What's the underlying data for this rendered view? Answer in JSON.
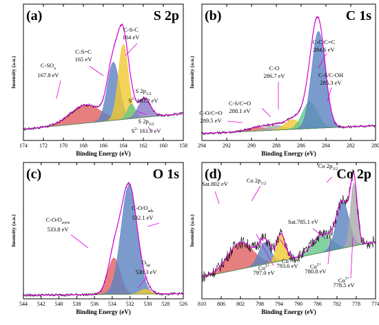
{
  "colors": {
    "red": "#e06060",
    "blue": "#5b82c0",
    "yellow": "#f0c830",
    "green": "#64c88a",
    "purple": "#8a78c8",
    "gray": "#aaaaaa",
    "envelope": "#e000e0",
    "data": "#000000"
  },
  "chart_data": [
    {
      "type": "area",
      "label": "(a)",
      "title": "S 2p",
      "xlabel": "Binding Energy (eV)",
      "ylabel": "Insensity (a.u.)",
      "xlim": [
        174,
        158
      ],
      "xticks": [
        "174",
        "172",
        "170",
        "168",
        "166",
        "164",
        "162",
        "160",
        "158"
      ],
      "baseline": 0.2,
      "components": [
        {
          "center": 167.8,
          "height": 0.15,
          "width": 1.5,
          "color": "red"
        },
        {
          "center": 165.0,
          "height": 0.48,
          "width": 0.6,
          "color": "blue"
        },
        {
          "center": 164.0,
          "height": 0.62,
          "width": 0.5,
          "color": "yellow"
        },
        {
          "center": 163.2,
          "height": 0.12,
          "width": 0.4,
          "color": "green"
        },
        {
          "center": 161.9,
          "height": 0.16,
          "width": 0.6,
          "color": "purple"
        }
      ],
      "annotations": [
        {
          "lines": [
            "C-SO<sub>x</sub>",
            "167.8 eV"
          ]
        },
        {
          "lines": [
            "C-S=C",
            "165 eV"
          ]
        },
        {
          "lines": [
            "C-S-C",
            "164 eV"
          ]
        },
        {
          "lines": [
            "S 2p<sub>1/2</sub>",
            "S<sup>2-</sup> 163.2 eV"
          ]
        },
        {
          "lines": [
            "S 2p<sub>3/2</sub>",
            "S<sup>2-</sup> 161.9 eV"
          ]
        }
      ]
    },
    {
      "type": "area",
      "label": "(b)",
      "title": "C 1s",
      "xlabel": "Binding Energy (eV)",
      "ylabel": "Insensity (a.u.)",
      "xlim": [
        294,
        280
      ],
      "xticks": [
        "294",
        "292",
        "290",
        "288",
        "286",
        "284",
        "282",
        "280"
      ],
      "baseline": 0.1,
      "components": [
        {
          "center": 289.5,
          "height": 0.03,
          "width": 0.8,
          "color": "red"
        },
        {
          "center": 288.1,
          "height": 0.04,
          "width": 0.7,
          "color": "gray"
        },
        {
          "center": 286.7,
          "height": 0.08,
          "width": 0.6,
          "color": "yellow"
        },
        {
          "center": 285.3,
          "height": 0.22,
          "width": 0.6,
          "color": "green"
        },
        {
          "center": 284.6,
          "height": 0.8,
          "width": 0.55,
          "color": "blue"
        }
      ],
      "annotations": [
        {
          "lines": [
            "C-O/C=O",
            "289.5 eV"
          ]
        },
        {
          "lines": [
            "C-S/C=O",
            "288.1 eV"
          ]
        },
        {
          "lines": [
            "C-O",
            "286.7 eV"
          ]
        },
        {
          "lines": [
            "C-C/C=C",
            "284.6 eV"
          ]
        },
        {
          "lines": [
            "C-S/C-OH",
            "285.3 eV"
          ]
        }
      ]
    },
    {
      "type": "area",
      "label": "(c)",
      "title": "O 1s",
      "xlabel": "Binding Energy (eV)",
      "ylabel": "Insensity (a.u.)",
      "xlim": [
        544,
        526
      ],
      "xticks": [
        "544",
        "542",
        "540",
        "538",
        "536",
        "534",
        "532",
        "530",
        "528",
        "526"
      ],
      "baseline": 0.02,
      "components": [
        {
          "center": 533.8,
          "height": 0.3,
          "width": 0.7,
          "color": "red"
        },
        {
          "center": 532.1,
          "height": 0.9,
          "width": 0.9,
          "color": "blue"
        },
        {
          "center": 530.3,
          "height": 0.04,
          "width": 0.6,
          "color": "yellow"
        }
      ],
      "annotations": [
        {
          "lines": [
            "C-O/O<sub>sorw</sub>",
            "533.8 eV"
          ]
        },
        {
          "lines": [
            "C-O/O<sub>ads</sub>",
            "532.1 eV"
          ]
        },
        {
          "lines": [
            "O<sub>lat</sub>",
            "530.3 eV"
          ]
        }
      ]
    },
    {
      "type": "area",
      "label": "(d)",
      "title": "Co 2p",
      "xlabel": "Binding Energy (eV)",
      "ylabel": "Insensity (a.u.)",
      "xlim": [
        810,
        774
      ],
      "xticks": [
        "810",
        "806",
        "802",
        "798",
        "794",
        "790",
        "786",
        "782",
        "778",
        "774"
      ],
      "baseline": 0.45,
      "components": [
        {
          "center": 802.0,
          "height": 0.22,
          "width": 2.6,
          "color": "red"
        },
        {
          "center": 797.0,
          "height": 0.18,
          "width": 1.2,
          "color": "blue"
        },
        {
          "center": 793.6,
          "height": 0.22,
          "width": 0.9,
          "color": "yellow"
        },
        {
          "center": 785.1,
          "height": 0.15,
          "width": 2.0,
          "color": "green"
        },
        {
          "center": 780.8,
          "height": 0.38,
          "width": 1.3,
          "color": "blue"
        },
        {
          "center": 778.5,
          "height": 0.52,
          "width": 0.7,
          "color": "gray"
        }
      ],
      "annotations": [
        {
          "lines": [
            "Sat.802 eV"
          ]
        },
        {
          "lines": [
            "Co 2p<sub>1/2</sub>"
          ]
        },
        {
          "lines": [
            "Sat.785.1 eV"
          ]
        },
        {
          "lines": [
            "Co 2p<sub>3/2</sub>"
          ]
        },
        {
          "lines": [
            "Co<sup>2+</sup>",
            "797.0 eV"
          ]
        },
        {
          "lines": [
            "Co<sup>3+</sup>",
            "793.6 eV"
          ]
        },
        {
          "lines": [
            "Co<sup>2+</sup>",
            "780.8 eV"
          ]
        },
        {
          "lines": [
            "Co<sup>3+</sup>",
            "778.5 eV"
          ]
        }
      ]
    }
  ]
}
